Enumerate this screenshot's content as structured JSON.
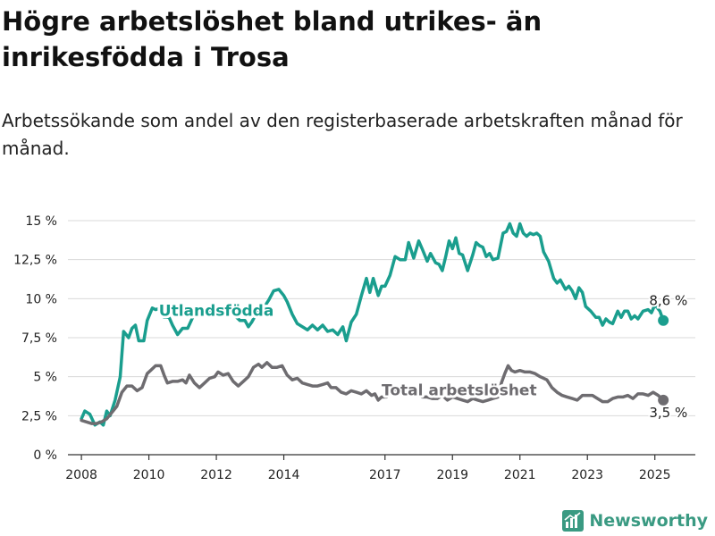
{
  "header": {
    "title": "Högre arbetslöshet bland utrikes- än inrikesfödda i Trosa",
    "subtitle": "Arbetssökande som andel av den registerbaserade arbetskraften månad för månad."
  },
  "brand": {
    "name": "Newsworthy",
    "color": "#3a9a82"
  },
  "colors": {
    "foreign_born": "#1a9e8e",
    "total": "#6e6c70",
    "grid": "#d9d9d9",
    "axis": "#333333"
  },
  "chart_data": {
    "type": "line",
    "title": "Högre arbetslöshet bland utrikes- än inrikesfödda i Trosa",
    "subtitle": "Arbetssökande som andel av den registerbaserade arbetskraften månad för månad.",
    "xlabel": "",
    "ylabel": "",
    "xlim": [
      2007.6,
      2026.2
    ],
    "ylim": [
      0,
      15
    ],
    "grid": true,
    "y_ticks": [
      {
        "value": 0,
        "label": "0 %"
      },
      {
        "value": 2.5,
        "label": "2,5 %"
      },
      {
        "value": 5,
        "label": "5 %"
      },
      {
        "value": 7.5,
        "label": "7,5 %"
      },
      {
        "value": 10,
        "label": "10 %"
      },
      {
        "value": 12.5,
        "label": "12,5 %"
      },
      {
        "value": 15,
        "label": "15 %"
      }
    ],
    "x_ticks": [
      {
        "value": 2008,
        "label": "2008"
      },
      {
        "value": 2010,
        "label": "2010"
      },
      {
        "value": 2012,
        "label": "2012"
      },
      {
        "value": 2014,
        "label": "2014"
      },
      {
        "value": 2017,
        "label": "2017"
      },
      {
        "value": 2019,
        "label": "2019"
      },
      {
        "value": 2021,
        "label": "2021"
      },
      {
        "value": 2023,
        "label": "2023"
      },
      {
        "value": 2025,
        "label": "2025"
      }
    ],
    "series": [
      {
        "name": "Utlandsfödda",
        "color": "#1a9e8e",
        "end_label": "8,6 %",
        "label_at": {
          "x": 2012.0,
          "y": 8.9
        },
        "end_label_at": {
          "x": 2025.4,
          "y": 9.6
        },
        "points": [
          [
            2008.0,
            2.3
          ],
          [
            2008.1,
            2.8
          ],
          [
            2008.25,
            2.6
          ],
          [
            2008.4,
            1.9
          ],
          [
            2008.55,
            2.1
          ],
          [
            2008.65,
            1.9
          ],
          [
            2008.75,
            2.8
          ],
          [
            2008.85,
            2.5
          ],
          [
            2009.0,
            3.5
          ],
          [
            2009.15,
            5.0
          ],
          [
            2009.25,
            7.9
          ],
          [
            2009.4,
            7.5
          ],
          [
            2009.5,
            8.1
          ],
          [
            2009.6,
            8.3
          ],
          [
            2009.7,
            7.3
          ],
          [
            2009.85,
            7.3
          ],
          [
            2009.95,
            8.6
          ],
          [
            2010.1,
            9.4
          ],
          [
            2010.2,
            9.3
          ],
          [
            2010.35,
            9.4
          ],
          [
            2010.45,
            8.8
          ],
          [
            2010.6,
            8.8
          ],
          [
            2010.7,
            8.3
          ],
          [
            2010.85,
            7.7
          ],
          [
            2011.0,
            8.1
          ],
          [
            2011.15,
            8.1
          ],
          [
            2011.3,
            8.8
          ],
          [
            2011.45,
            9.2
          ],
          [
            2011.6,
            9.0
          ],
          [
            2011.75,
            9.0
          ],
          [
            2011.9,
            9.4
          ],
          [
            2012.0,
            9.0
          ],
          [
            2012.1,
            9.2
          ],
          [
            2012.25,
            9.0
          ],
          [
            2012.4,
            9.0
          ],
          [
            2012.55,
            8.9
          ],
          [
            2012.7,
            8.6
          ],
          [
            2012.85,
            8.6
          ],
          [
            2012.95,
            8.2
          ],
          [
            2013.05,
            8.5
          ],
          [
            2013.2,
            9.1
          ],
          [
            2013.4,
            9.4
          ],
          [
            2013.55,
            9.9
          ],
          [
            2013.7,
            10.5
          ],
          [
            2013.85,
            10.6
          ],
          [
            2014.0,
            10.2
          ],
          [
            2014.1,
            9.8
          ],
          [
            2014.25,
            9.0
          ],
          [
            2014.4,
            8.4
          ],
          [
            2014.55,
            8.2
          ],
          [
            2014.7,
            8.0
          ],
          [
            2014.85,
            8.3
          ],
          [
            2015.0,
            8.0
          ],
          [
            2015.15,
            8.3
          ],
          [
            2015.3,
            7.9
          ],
          [
            2015.45,
            8.0
          ],
          [
            2015.6,
            7.7
          ],
          [
            2015.75,
            8.2
          ],
          [
            2015.85,
            7.3
          ],
          [
            2016.0,
            8.5
          ],
          [
            2016.15,
            9.0
          ],
          [
            2016.3,
            10.2
          ],
          [
            2016.45,
            11.3
          ],
          [
            2016.55,
            10.4
          ],
          [
            2016.65,
            11.3
          ],
          [
            2016.8,
            10.2
          ],
          [
            2016.9,
            10.8
          ],
          [
            2017.0,
            10.8
          ],
          [
            2017.15,
            11.5
          ],
          [
            2017.3,
            12.7
          ],
          [
            2017.45,
            12.5
          ],
          [
            2017.6,
            12.5
          ],
          [
            2017.7,
            13.6
          ],
          [
            2017.85,
            12.6
          ],
          [
            2018.0,
            13.7
          ],
          [
            2018.1,
            13.2
          ],
          [
            2018.25,
            12.4
          ],
          [
            2018.35,
            12.9
          ],
          [
            2018.5,
            12.3
          ],
          [
            2018.6,
            12.2
          ],
          [
            2018.7,
            11.8
          ],
          [
            2018.8,
            12.7
          ],
          [
            2018.9,
            13.7
          ],
          [
            2019.0,
            13.2
          ],
          [
            2019.1,
            13.9
          ],
          [
            2019.2,
            12.9
          ],
          [
            2019.3,
            12.8
          ],
          [
            2019.45,
            11.8
          ],
          [
            2019.6,
            12.8
          ],
          [
            2019.7,
            13.6
          ],
          [
            2019.8,
            13.4
          ],
          [
            2019.9,
            13.3
          ],
          [
            2020.0,
            12.7
          ],
          [
            2020.1,
            12.9
          ],
          [
            2020.2,
            12.5
          ],
          [
            2020.35,
            12.6
          ],
          [
            2020.5,
            14.2
          ],
          [
            2020.6,
            14.3
          ],
          [
            2020.7,
            14.8
          ],
          [
            2020.8,
            14.2
          ],
          [
            2020.9,
            14.0
          ],
          [
            2021.0,
            14.8
          ],
          [
            2021.1,
            14.2
          ],
          [
            2021.2,
            14.0
          ],
          [
            2021.3,
            14.2
          ],
          [
            2021.4,
            14.1
          ],
          [
            2021.5,
            14.2
          ],
          [
            2021.6,
            14.0
          ],
          [
            2021.7,
            13.0
          ],
          [
            2021.85,
            12.4
          ],
          [
            2022.0,
            11.3
          ],
          [
            2022.1,
            11.0
          ],
          [
            2022.2,
            11.2
          ],
          [
            2022.35,
            10.6
          ],
          [
            2022.45,
            10.8
          ],
          [
            2022.55,
            10.5
          ],
          [
            2022.65,
            10.0
          ],
          [
            2022.75,
            10.7
          ],
          [
            2022.85,
            10.4
          ],
          [
            2022.95,
            9.5
          ],
          [
            2023.1,
            9.2
          ],
          [
            2023.25,
            8.8
          ],
          [
            2023.35,
            8.8
          ],
          [
            2023.45,
            8.3
          ],
          [
            2023.55,
            8.7
          ],
          [
            2023.65,
            8.5
          ],
          [
            2023.75,
            8.4
          ],
          [
            2023.9,
            9.2
          ],
          [
            2024.0,
            8.8
          ],
          [
            2024.1,
            9.2
          ],
          [
            2024.2,
            9.2
          ],
          [
            2024.3,
            8.7
          ],
          [
            2024.4,
            8.9
          ],
          [
            2024.5,
            8.7
          ],
          [
            2024.65,
            9.2
          ],
          [
            2024.8,
            9.3
          ],
          [
            2024.9,
            9.1
          ],
          [
            2025.0,
            9.6
          ],
          [
            2025.15,
            9.2
          ],
          [
            2025.25,
            8.6
          ]
        ]
      },
      {
        "name": "Total arbetslöshet",
        "color": "#6e6c70",
        "end_label": "3,5 %",
        "label_at": {
          "x": 2019.2,
          "y": 3.8
        },
        "end_label_at": {
          "x": 2025.4,
          "y": 2.4
        },
        "points": [
          [
            2008.0,
            2.2
          ],
          [
            2008.15,
            2.1
          ],
          [
            2008.3,
            2.0
          ],
          [
            2008.45,
            2.0
          ],
          [
            2008.6,
            2.1
          ],
          [
            2008.75,
            2.3
          ],
          [
            2008.9,
            2.7
          ],
          [
            2009.05,
            3.1
          ],
          [
            2009.2,
            4.0
          ],
          [
            2009.35,
            4.4
          ],
          [
            2009.5,
            4.4
          ],
          [
            2009.65,
            4.1
          ],
          [
            2009.8,
            4.3
          ],
          [
            2009.95,
            5.2
          ],
          [
            2010.05,
            5.4
          ],
          [
            2010.2,
            5.7
          ],
          [
            2010.35,
            5.7
          ],
          [
            2010.45,
            5.1
          ],
          [
            2010.55,
            4.6
          ],
          [
            2010.7,
            4.7
          ],
          [
            2010.85,
            4.7
          ],
          [
            2011.0,
            4.8
          ],
          [
            2011.1,
            4.6
          ],
          [
            2011.2,
            5.1
          ],
          [
            2011.35,
            4.6
          ],
          [
            2011.5,
            4.3
          ],
          [
            2011.65,
            4.6
          ],
          [
            2011.8,
            4.9
          ],
          [
            2011.95,
            5.0
          ],
          [
            2012.05,
            5.3
          ],
          [
            2012.2,
            5.1
          ],
          [
            2012.35,
            5.2
          ],
          [
            2012.5,
            4.7
          ],
          [
            2012.65,
            4.4
          ],
          [
            2012.8,
            4.7
          ],
          [
            2012.95,
            5.0
          ],
          [
            2013.1,
            5.6
          ],
          [
            2013.25,
            5.8
          ],
          [
            2013.35,
            5.6
          ],
          [
            2013.5,
            5.9
          ],
          [
            2013.65,
            5.6
          ],
          [
            2013.8,
            5.6
          ],
          [
            2013.95,
            5.7
          ],
          [
            2014.1,
            5.1
          ],
          [
            2014.25,
            4.8
          ],
          [
            2014.4,
            4.9
          ],
          [
            2014.55,
            4.6
          ],
          [
            2014.7,
            4.5
          ],
          [
            2014.85,
            4.4
          ],
          [
            2015.0,
            4.4
          ],
          [
            2015.15,
            4.5
          ],
          [
            2015.3,
            4.6
          ],
          [
            2015.4,
            4.3
          ],
          [
            2015.55,
            4.3
          ],
          [
            2015.7,
            4.0
          ],
          [
            2015.85,
            3.9
          ],
          [
            2016.0,
            4.1
          ],
          [
            2016.15,
            4.0
          ],
          [
            2016.3,
            3.9
          ],
          [
            2016.45,
            4.1
          ],
          [
            2016.6,
            3.8
          ],
          [
            2016.7,
            3.9
          ],
          [
            2016.8,
            3.5
          ],
          [
            2016.9,
            3.7
          ],
          [
            2017.05,
            3.7
          ],
          [
            2017.2,
            4.0
          ],
          [
            2017.35,
            4.1
          ],
          [
            2017.5,
            4.0
          ],
          [
            2017.65,
            4.3
          ],
          [
            2017.8,
            3.9
          ],
          [
            2017.95,
            3.9
          ],
          [
            2018.1,
            3.7
          ],
          [
            2018.25,
            3.7
          ],
          [
            2018.4,
            3.6
          ],
          [
            2018.55,
            3.6
          ],
          [
            2018.7,
            3.8
          ],
          [
            2018.85,
            3.5
          ],
          [
            2019.0,
            3.7
          ],
          [
            2019.15,
            3.6
          ],
          [
            2019.3,
            3.5
          ],
          [
            2019.45,
            3.4
          ],
          [
            2019.6,
            3.6
          ],
          [
            2019.75,
            3.5
          ],
          [
            2019.9,
            3.4
          ],
          [
            2020.05,
            3.5
          ],
          [
            2020.2,
            3.6
          ],
          [
            2020.35,
            3.7
          ],
          [
            2020.45,
            4.6
          ],
          [
            2020.55,
            5.2
          ],
          [
            2020.65,
            5.7
          ],
          [
            2020.75,
            5.4
          ],
          [
            2020.85,
            5.3
          ],
          [
            2021.0,
            5.4
          ],
          [
            2021.15,
            5.3
          ],
          [
            2021.3,
            5.3
          ],
          [
            2021.45,
            5.2
          ],
          [
            2021.6,
            5.0
          ],
          [
            2021.7,
            4.9
          ],
          [
            2021.8,
            4.8
          ],
          [
            2021.95,
            4.3
          ],
          [
            2022.1,
            4.0
          ],
          [
            2022.25,
            3.8
          ],
          [
            2022.4,
            3.7
          ],
          [
            2022.55,
            3.6
          ],
          [
            2022.7,
            3.5
          ],
          [
            2022.85,
            3.8
          ],
          [
            2023.0,
            3.8
          ],
          [
            2023.15,
            3.8
          ],
          [
            2023.3,
            3.6
          ],
          [
            2023.45,
            3.4
          ],
          [
            2023.6,
            3.4
          ],
          [
            2023.75,
            3.6
          ],
          [
            2023.9,
            3.7
          ],
          [
            2024.05,
            3.7
          ],
          [
            2024.2,
            3.8
          ],
          [
            2024.35,
            3.6
          ],
          [
            2024.5,
            3.9
          ],
          [
            2024.65,
            3.9
          ],
          [
            2024.8,
            3.8
          ],
          [
            2024.95,
            4.0
          ],
          [
            2025.1,
            3.8
          ],
          [
            2025.25,
            3.5
          ]
        ]
      }
    ]
  }
}
